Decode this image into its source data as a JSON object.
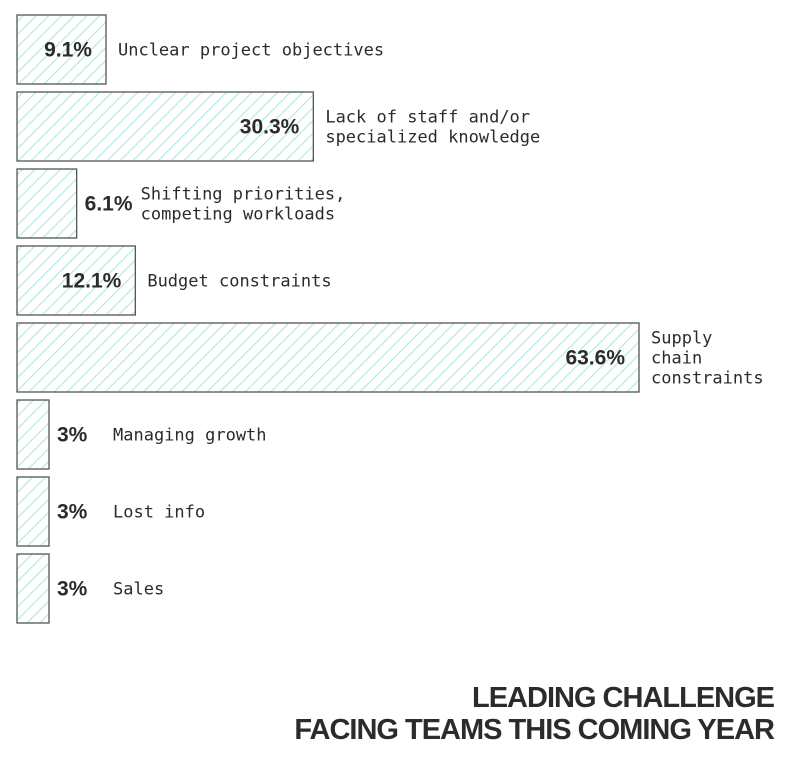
{
  "chart_data": {
    "type": "bar",
    "orientation": "horizontal",
    "categories": [
      [
        "Unclear project objectives"
      ],
      [
        "Lack of staff and/or",
        "specialized knowledge"
      ],
      [
        "Shifting priorities,",
        "competing workloads"
      ],
      [
        "Budget constraints"
      ],
      [
        "Supply",
        "chain",
        "constraints"
      ],
      [
        "Managing growth"
      ],
      [
        "Lost info"
      ],
      [
        "Sales"
      ]
    ],
    "values": [
      9.1,
      30.3,
      6.1,
      12.1,
      63.6,
      3,
      3,
      3
    ],
    "value_labels": [
      "9.1%",
      "30.3%",
      "6.1%",
      "12.1%",
      "63.6%",
      "3%",
      "3%",
      "3%"
    ],
    "title_lines": [
      "LEADING CHALLENGE",
      "FACING TEAMS THIS COMING YEAR"
    ],
    "xlim": [
      0,
      63.6
    ],
    "grid": false,
    "legend": "none"
  },
  "colors": {
    "bar_fill": "#ffffff",
    "bar_hatch": "#aee8e2",
    "bar_border": "#555555",
    "text": "#2b2b2b"
  }
}
